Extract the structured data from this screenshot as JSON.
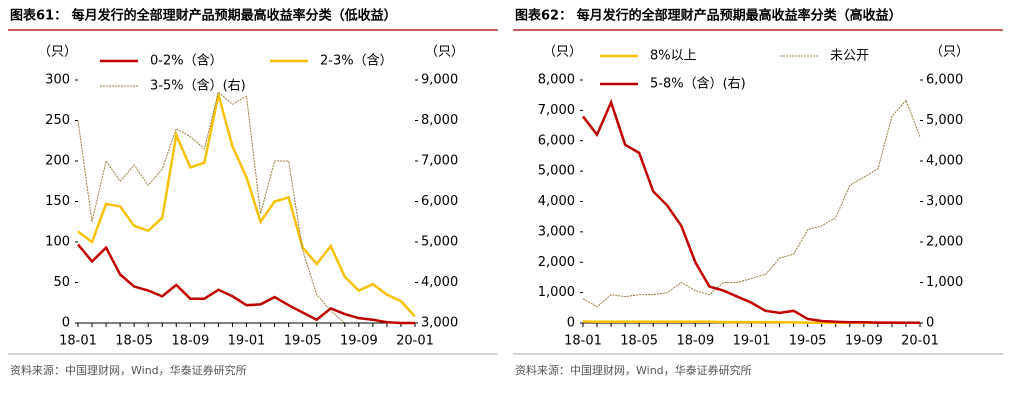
{
  "chart_data": [
    {
      "type": "line",
      "title": "图表61：  每月发行的全部理财产品预期最高收益率分类（低收益）",
      "y_label": "（只）",
      "y2_label": "（只）",
      "source": "资料来源：中国理财网，Wind，华泰证券研究所",
      "categories": [
        "18-01",
        null,
        null,
        null,
        "18-05",
        null,
        null,
        null,
        "18-09",
        null,
        null,
        null,
        "19-01",
        null,
        null,
        null,
        "19-05",
        null,
        null,
        null,
        "19-09",
        null,
        null,
        null,
        "20-01"
      ],
      "ylim": [
        0,
        300
      ],
      "yticks": [
        0,
        50,
        100,
        150,
        200,
        250,
        300
      ],
      "y2lim": [
        3000,
        9000
      ],
      "y2ticks": [
        {
          "value": 3000,
          "label": "3,000"
        },
        {
          "value": 4000,
          "label": "4,000"
        },
        {
          "value": 5000,
          "label": "5,000"
        },
        {
          "value": 6000,
          "label": "6,000"
        },
        {
          "value": 7000,
          "label": "7,000"
        },
        {
          "value": 8000,
          "label": "8,000"
        },
        {
          "value": 9000,
          "label": "9,000"
        }
      ],
      "series": [
        {
          "name": "0-2%（含）",
          "color": "#c00000",
          "values": [
            97,
            76,
            93,
            60,
            45,
            40,
            33,
            47,
            30,
            30,
            41,
            33,
            22,
            23,
            32,
            22,
            13,
            4,
            18,
            11,
            6,
            4,
            1,
            0,
            0
          ]
        },
        {
          "name": "2-3%（含）",
          "color": "#f7c100",
          "values": [
            113,
            100,
            147,
            144,
            120,
            114,
            130,
            232,
            192,
            198,
            282,
            218,
            180,
            125,
            150,
            155,
            93,
            73,
            95,
            57,
            40,
            48,
            35,
            27,
            8
          ]
        },
        {
          "name": "3-5%（含）(右)",
          "color": "#9c7a3c",
          "axis": "y2",
          "values": [
            8000,
            5500,
            7000,
            6500,
            6900,
            6400,
            6800,
            7800,
            7600,
            7300,
            8700,
            8400,
            8600,
            5700,
            7000,
            7000,
            4800,
            3700,
            3300,
            3000,
            null,
            null,
            null,
            null,
            null
          ]
        }
      ]
    },
    {
      "type": "line",
      "title": "图表62：  每月发行的全部理财产品预期最高收益率分类（高收益）",
      "y_label": "（只）",
      "y2_label": "（只）",
      "source": "资料来源：中国理财网，Wind，华泰证券研究所",
      "categories": [
        "18-01",
        null,
        null,
        null,
        "18-05",
        null,
        null,
        null,
        "18-09",
        null,
        null,
        null,
        "19-01",
        null,
        null,
        null,
        "19-05",
        null,
        null,
        null,
        "19-09",
        null,
        null,
        null,
        "20-01"
      ],
      "ylim": [
        0,
        8000
      ],
      "yticks": [
        0,
        {
          "value": 1000,
          "label": "1,000"
        },
        {
          "value": 2000,
          "label": "2,000"
        },
        {
          "value": 3000,
          "label": "3,000"
        },
        {
          "value": 4000,
          "label": "4,000"
        },
        {
          "value": 5000,
          "label": "5,000"
        },
        {
          "value": 6000,
          "label": "6,000"
        },
        {
          "value": 7000,
          "label": "7,000"
        },
        {
          "value": 8000,
          "label": "8,000"
        }
      ],
      "y2lim": [
        0,
        6000
      ],
      "y2ticks": [
        0,
        {
          "value": 1000,
          "label": "1,000"
        },
        {
          "value": 2000,
          "label": "2,000"
        },
        {
          "value": 3000,
          "label": "3,000"
        },
        {
          "value": 4000,
          "label": "4,000"
        },
        {
          "value": 5000,
          "label": "5,000"
        },
        {
          "value": 6000,
          "label": "6,000"
        }
      ],
      "series": [
        {
          "name": "8%以上",
          "color": "#f7c100",
          "values": [
            50,
            40,
            40,
            40,
            40,
            40,
            40,
            40,
            40,
            40,
            30,
            30,
            30,
            30,
            30,
            20,
            10,
            10,
            10,
            10,
            10,
            10,
            10,
            10,
            10
          ]
        },
        {
          "name": "未公开",
          "color": "#9c7a3c",
          "axis": "y2",
          "values": [
            600,
            400,
            700,
            650,
            700,
            700,
            750,
            1000,
            800,
            700,
            1000,
            1000,
            1100,
            1200,
            1600,
            1700,
            2300,
            2400,
            2600,
            3400,
            3600,
            3800,
            5100,
            5500,
            4600
          ]
        },
        {
          "name": "5-8%（含）(右)",
          "color": "#c00000",
          "axis": "y2",
          "values": [
            5100,
            4650,
            5450,
            4400,
            4200,
            3250,
            2900,
            2400,
            1500,
            900,
            800,
            650,
            500,
            300,
            250,
            300,
            100,
            50,
            30,
            20,
            20,
            10,
            10,
            5,
            5
          ]
        }
      ]
    }
  ]
}
